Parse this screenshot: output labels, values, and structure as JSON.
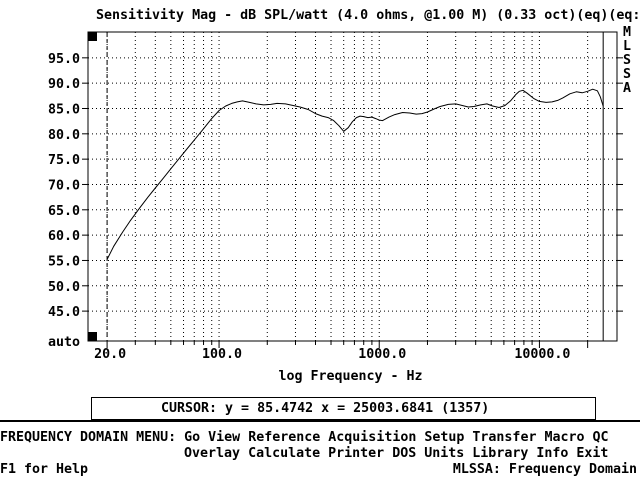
{
  "screen": {
    "title": "Sensitivity Mag - dB SPL/watt (4.0 ohms, @1.00 M) (0.33 oct)(eq)(eq:",
    "side_label": "MLSSA",
    "cursor_readout": "CURSOR: y = 85.4742 x = 25003.6841 (1357)",
    "menu_prompt": "FREQUENCY DOMAIN MENU:",
    "menu_row1": [
      "Go",
      "View",
      "Reference",
      "Acquisition",
      "Setup",
      "Transfer",
      "Macro",
      "QC"
    ],
    "menu_row2": [
      "Overlay",
      "Calculate",
      "Printer",
      "DOS",
      "Units",
      "Library",
      "Info",
      "Exit"
    ],
    "help_hint": "F1 for Help",
    "status": "MLSSA: Frequency Domain"
  },
  "chart_data": {
    "type": "line",
    "title": "Sensitivity Mag - dB SPL/watt (4.0 ohms, @1.00 M) (0.33 oct)(eq)(eq:",
    "xlabel": "log Frequency - Hz",
    "ylabel": "dB SPL/watt",
    "x_scale": "log",
    "grid": "dotted",
    "xlim": [
      15.2,
      30500
    ],
    "ylim": [
      39.1,
      100.1
    ],
    "x_ticks": {
      "values": [
        20,
        100,
        1000,
        10000
      ],
      "labels": [
        "20.0",
        "100.0",
        "1000.0",
        "10000.0"
      ]
    },
    "x_major_ticks": [
      20,
      100,
      1000,
      10000,
      20000
    ],
    "x_minor_ticks": [
      20,
      30,
      40,
      50,
      60,
      70,
      80,
      90,
      100,
      200,
      300,
      400,
      500,
      600,
      700,
      800,
      900,
      1000,
      2000,
      3000,
      4000,
      5000,
      6000,
      7000,
      8000,
      9000,
      10000,
      20000
    ],
    "y_ticks": {
      "values": [
        95,
        90,
        85,
        80,
        75,
        70,
        65,
        60,
        55,
        50,
        45
      ],
      "labels": [
        "95.0",
        "90.0",
        "85.0",
        "80.0",
        "75.0",
        "70.0",
        "65.0",
        "60.0",
        "55.0",
        "50.0",
        "45.0"
      ]
    },
    "y_bottom_label": "auto",
    "cursor": {
      "y": 85.4742,
      "x": 25003.6841,
      "sample": 1357
    },
    "marker_line_hz": 20,
    "series": [
      {
        "name": "Sensitivity Mag",
        "points": [
          [
            20,
            55.2
          ],
          [
            22,
            57.8
          ],
          [
            25,
            60.6
          ],
          [
            28,
            62.9
          ],
          [
            32,
            65.4
          ],
          [
            36,
            67.5
          ],
          [
            40,
            69.3
          ],
          [
            45,
            71.3
          ],
          [
            50,
            73.1
          ],
          [
            56,
            75.0
          ],
          [
            63,
            77.0
          ],
          [
            71,
            79.0
          ],
          [
            80,
            81.0
          ],
          [
            90,
            83.0
          ],
          [
            100,
            84.6
          ],
          [
            110,
            85.5
          ],
          [
            120,
            86.0
          ],
          [
            130,
            86.3
          ],
          [
            140,
            86.5
          ],
          [
            155,
            86.2
          ],
          [
            170,
            85.9
          ],
          [
            190,
            85.7
          ],
          [
            210,
            85.8
          ],
          [
            230,
            86.0
          ],
          [
            260,
            85.9
          ],
          [
            290,
            85.6
          ],
          [
            320,
            85.3
          ],
          [
            360,
            84.8
          ],
          [
            400,
            84.0
          ],
          [
            440,
            83.5
          ],
          [
            480,
            83.2
          ],
          [
            520,
            82.6
          ],
          [
            560,
            81.6
          ],
          [
            600,
            80.5
          ],
          [
            640,
            81.2
          ],
          [
            680,
            82.4
          ],
          [
            720,
            83.2
          ],
          [
            760,
            83.5
          ],
          [
            800,
            83.4
          ],
          [
            850,
            83.2
          ],
          [
            900,
            83.3
          ],
          [
            950,
            83.0
          ],
          [
            1000,
            82.7
          ],
          [
            1050,
            82.6
          ],
          [
            1150,
            83.3
          ],
          [
            1250,
            83.8
          ],
          [
            1400,
            84.2
          ],
          [
            1550,
            84.1
          ],
          [
            1700,
            83.9
          ],
          [
            1850,
            84.0
          ],
          [
            2000,
            84.3
          ],
          [
            2200,
            84.9
          ],
          [
            2400,
            85.4
          ],
          [
            2700,
            85.8
          ],
          [
            3000,
            85.9
          ],
          [
            3300,
            85.6
          ],
          [
            3600,
            85.3
          ],
          [
            3900,
            85.4
          ],
          [
            4300,
            85.7
          ],
          [
            4700,
            85.9
          ],
          [
            5100,
            85.5
          ],
          [
            5600,
            85.2
          ],
          [
            6100,
            85.6
          ],
          [
            6600,
            86.5
          ],
          [
            7100,
            87.7
          ],
          [
            7500,
            88.4
          ],
          [
            7900,
            88.6
          ],
          [
            8400,
            88.0
          ],
          [
            9200,
            87.0
          ],
          [
            10000,
            86.4
          ],
          [
            11000,
            86.2
          ],
          [
            12000,
            86.3
          ],
          [
            13000,
            86.6
          ],
          [
            14000,
            87.1
          ],
          [
            15500,
            87.9
          ],
          [
            17000,
            88.3
          ],
          [
            18500,
            88.1
          ],
          [
            20000,
            88.4
          ],
          [
            21500,
            88.8
          ],
          [
            23000,
            88.5
          ],
          [
            24000,
            87.3
          ],
          [
            24600,
            86.2
          ],
          [
            25003.6841,
            85.4742
          ]
        ]
      }
    ]
  }
}
